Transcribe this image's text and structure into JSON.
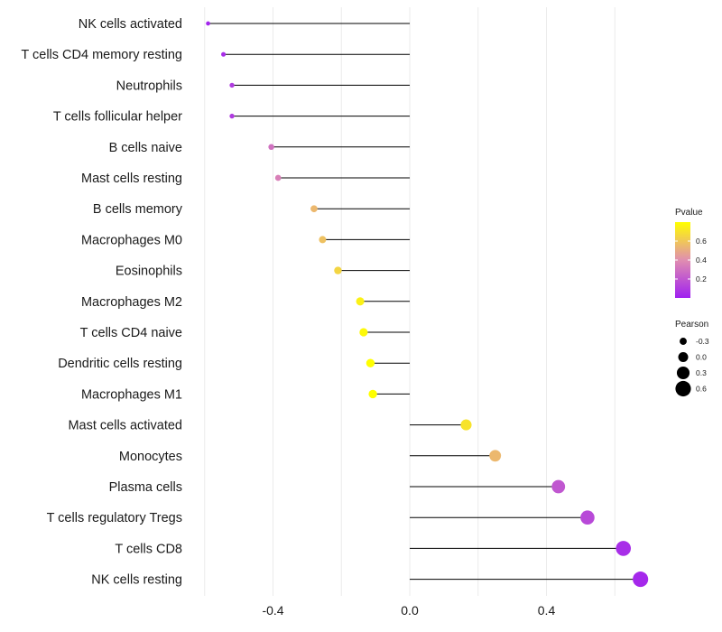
{
  "chart_data": {
    "type": "lollipop",
    "title": "",
    "xlabel": "",
    "ylabel": "",
    "xlim": [
      -0.6,
      0.73
    ],
    "x_ticks": [
      -0.4,
      0.0,
      0.4
    ],
    "x_tick_labels": [
      "-0.4",
      "0.0",
      "0.4"
    ],
    "categories": [
      "NK cells activated",
      "T cells CD4 memory resting",
      "Neutrophils",
      "T cells follicular helper",
      "B cells naive",
      "Mast cells resting",
      "B cells memory",
      "Macrophages M0",
      "Eosinophils",
      "Macrophages M2",
      "T cells CD4 naive",
      "Dendritic cells resting",
      "Macrophages M1",
      "Mast cells activated",
      "Monocytes",
      "Plasma cells",
      "T cells regulatory  Tregs ",
      "T cells CD8",
      "NK cells resting"
    ],
    "values": [
      -0.59,
      -0.545,
      -0.52,
      -0.52,
      -0.405,
      -0.385,
      -0.28,
      -0.255,
      -0.21,
      -0.145,
      -0.135,
      -0.115,
      -0.108,
      0.165,
      0.25,
      0.435,
      0.52,
      0.625,
      0.675
    ],
    "pvalues": [
      0.02,
      0.05,
      0.1,
      0.1,
      0.3,
      0.35,
      0.55,
      0.58,
      0.65,
      0.75,
      0.78,
      0.8,
      0.8,
      0.7,
      0.55,
      0.2,
      0.15,
      0.05,
      0.03
    ],
    "legend": {
      "position": "right",
      "color": {
        "title": "Pvalue",
        "ticks": [
          "0.6",
          "0.4",
          "0.2"
        ],
        "tick_values": [
          0.6,
          0.4,
          0.2
        ],
        "range": [
          0.0,
          0.8
        ],
        "low_color": "#a020f0",
        "mid_color": "#e08eb0",
        "high_color": "#ffff00"
      },
      "size": {
        "title": "Pearson",
        "entries": [
          "-0.3",
          "0.0",
          "0.3",
          "0.6"
        ],
        "entry_values": [
          -0.3,
          0.0,
          0.3,
          0.6
        ]
      }
    }
  }
}
